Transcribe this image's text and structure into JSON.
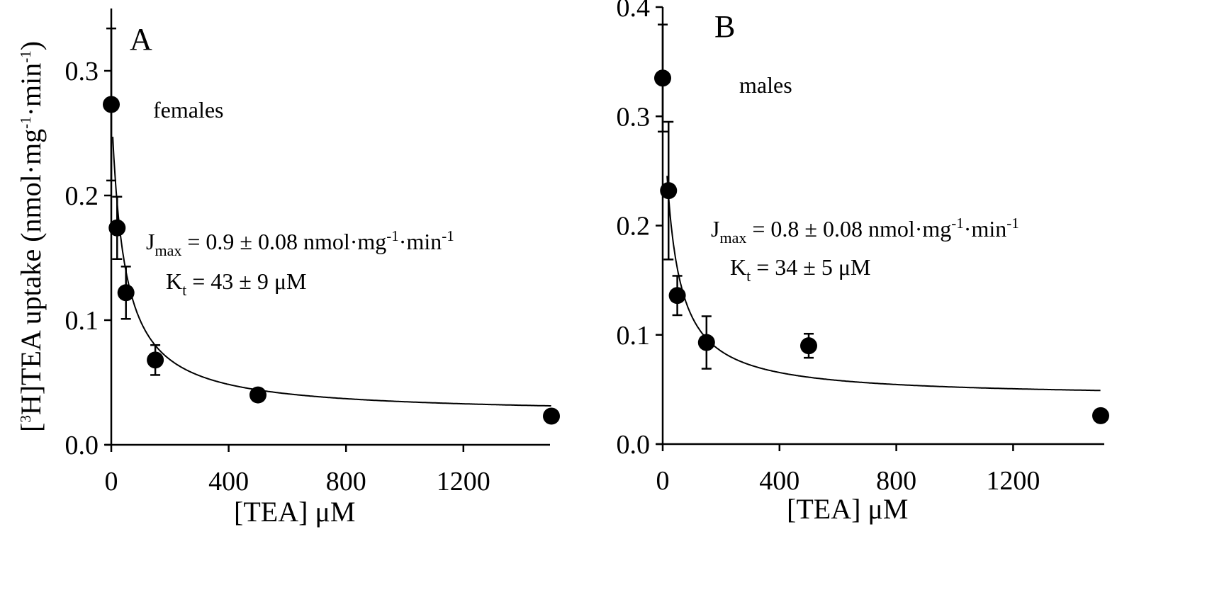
{
  "chart_data": [
    {
      "type": "scatter",
      "panel_letter": "A",
      "group_label": "females",
      "xlabel": "[TEA] μM",
      "ylabel": "[3H]TEA uptake (nmol·mg-1·min-1)",
      "ylabel_parts": {
        "pre": "[",
        "sup_iso": "3",
        "main": "H]TEA uptake (nmol·mg",
        "sup1": "-1",
        "mid": "·min",
        "sup2": "-1",
        "end": ")"
      },
      "xlim": [
        0,
        1500
      ],
      "ylim": [
        0,
        0.35
      ],
      "xticks": [
        0,
        400,
        800,
        1200
      ],
      "yticks": [
        0.0,
        0.1,
        0.2,
        0.3
      ],
      "ytick_labels": [
        "0.0",
        "0.1",
        "0.2",
        "0.3"
      ],
      "x": [
        0,
        20,
        50,
        150,
        500,
        1500
      ],
      "y": [
        0.273,
        0.174,
        0.122,
        0.068,
        0.04,
        0.023
      ],
      "error": [
        0.061,
        0.025,
        0.021,
        0.012,
        0.0,
        0.0
      ],
      "fit": {
        "Jmax": 0.9,
        "Kt": 43,
        "baseline": 0.0243,
        "x_start": 5
      },
      "annotations": {
        "jmax": {
          "prefix": "J",
          "sub": "max",
          "text": " = 0.9 ±  0.08 nmol·mg",
          "sup1": "-1",
          "mid": "·min",
          "sup2": "-1"
        },
        "kt": {
          "prefix": "K",
          "sub": "t",
          "text": " = 43 ± 9 μM"
        }
      }
    },
    {
      "type": "scatter",
      "panel_letter": "B",
      "group_label": "males",
      "xlabel": "[TEA] μM",
      "xlim": [
        0,
        1500
      ],
      "ylim": [
        0,
        0.4
      ],
      "xticks": [
        0,
        400,
        800,
        1200
      ],
      "yticks": [
        0.0,
        0.1,
        0.2,
        0.3,
        0.4
      ],
      "ytick_labels": [
        "0.0",
        "0.1",
        "0.2",
        "0.3",
        "0.4"
      ],
      "x": [
        0,
        20,
        50,
        150,
        500,
        1500
      ],
      "y": [
        0.335,
        0.232,
        0.136,
        0.093,
        0.09,
        0.026
      ],
      "error": [
        0.049,
        0.063,
        0.018,
        0.024,
        0.011,
        0.0
      ],
      "fit": {
        "Jmax": 0.8,
        "Kt": 34,
        "baseline": 0.0426,
        "x_start": 15
      },
      "annotations": {
        "jmax": {
          "prefix": "J",
          "sub": "max",
          "text": " = 0.8 ± 0.08 nmol·mg",
          "sup1": "-1",
          "mid": "·min",
          "sup2": "-1"
        },
        "kt": {
          "prefix": "K",
          "sub": "t",
          "text": " = 34 ± 5 μM"
        }
      }
    }
  ]
}
